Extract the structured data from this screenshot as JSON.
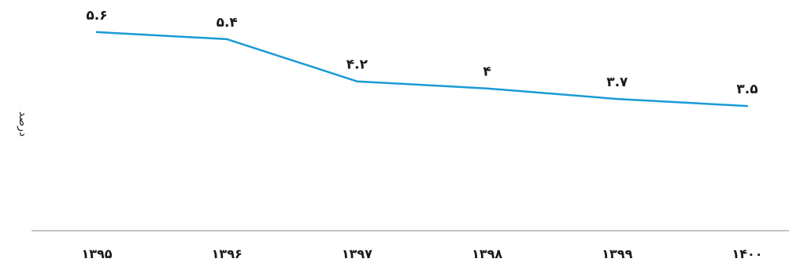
{
  "chart_data": {
    "type": "line",
    "categories": [
      "۱۳۹۵",
      "۱۳۹۶",
      "۱۳۹۷",
      "۱۳۹۸",
      "۱۳۹۹",
      "۱۴۰۰"
    ],
    "series": [
      {
        "values": [
          5.6,
          5.4,
          4.2,
          4.0,
          3.7,
          3.5
        ],
        "labels": [
          "۵.۶",
          "۵.۴",
          "۴.۲",
          "۴",
          "۳.۷",
          "۳.۵"
        ],
        "color": "#1a9ad6"
      }
    ],
    "ylabel": "درصد",
    "ylim": [
      0,
      6
    ],
    "grid": false,
    "legend": "none",
    "axis_color": "#888888"
  }
}
